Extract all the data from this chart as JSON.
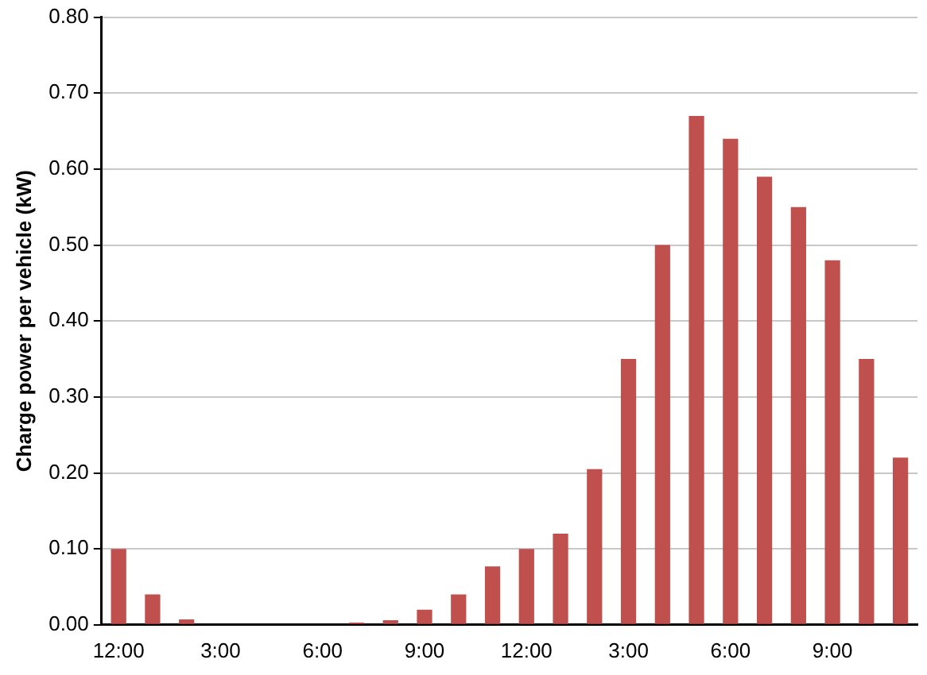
{
  "chart_data": {
    "type": "bar",
    "ylabel": "Charge power per vehicle (kW)",
    "categories": [
      "12:00",
      null,
      null,
      "3:00",
      null,
      null,
      "6:00",
      null,
      null,
      "9:00",
      null,
      null,
      "12:00",
      null,
      null,
      "3:00",
      null,
      null,
      "6:00",
      null,
      null,
      "9:00",
      null,
      null
    ],
    "values": [
      0.1,
      0.04,
      0.007,
      0,
      0,
      0,
      0,
      0.003,
      0.006,
      0.02,
      0.04,
      0.077,
      0.1,
      0.12,
      0.205,
      0.35,
      0.5,
      0.67,
      0.64,
      0.59,
      0.55,
      0.48,
      0.35,
      0.22
    ],
    "color": "#c0504d",
    "ylim": [
      0,
      0.8
    ],
    "yticks": [
      {
        "value": 0,
        "label": "0.00"
      },
      {
        "value": 0.1,
        "label": "0.10"
      },
      {
        "value": 0.2,
        "label": "0.20"
      },
      {
        "value": 0.3,
        "label": "0.30"
      },
      {
        "value": 0.4,
        "label": "0.40"
      },
      {
        "value": 0.5,
        "label": "0.50"
      },
      {
        "value": 0.6,
        "label": "0.60"
      },
      {
        "value": 0.7,
        "label": "0.70"
      },
      {
        "value": 0.8,
        "label": "0.80"
      }
    ],
    "grid": "y",
    "legend": false
  }
}
